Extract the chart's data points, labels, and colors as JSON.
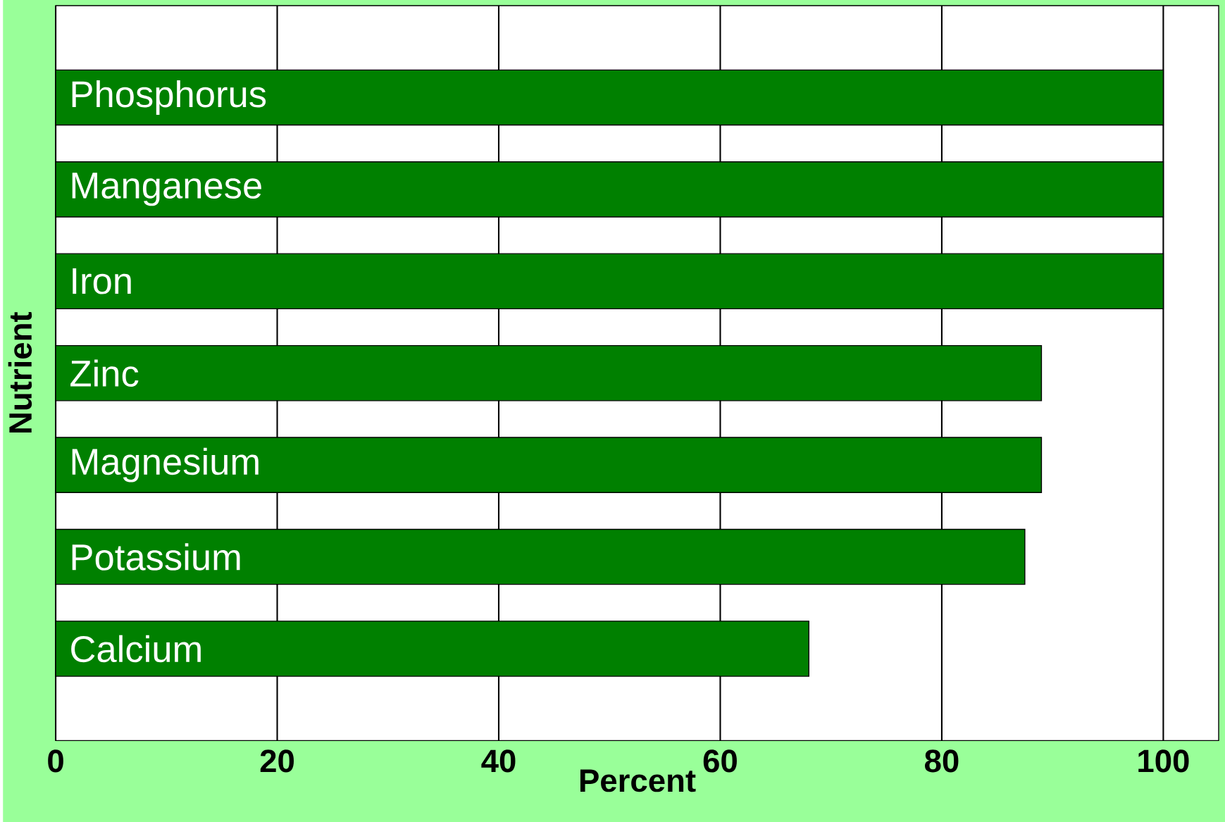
{
  "chart_data": {
    "type": "bar",
    "orientation": "horizontal",
    "categories": [
      "Phosphorus",
      "Manganese",
      "Iron",
      "Zinc",
      "Magnesium",
      "Potassium",
      "Calcium"
    ],
    "values": [
      100,
      100,
      100,
      89,
      89,
      87.5,
      68
    ],
    "color": "#008000",
    "xlim": [
      0,
      105
    ],
    "xticks": [
      0,
      20,
      40,
      60,
      80,
      100
    ],
    "xlabel": "Percent",
    "ylabel": "Nutrient",
    "grid": "x"
  }
}
